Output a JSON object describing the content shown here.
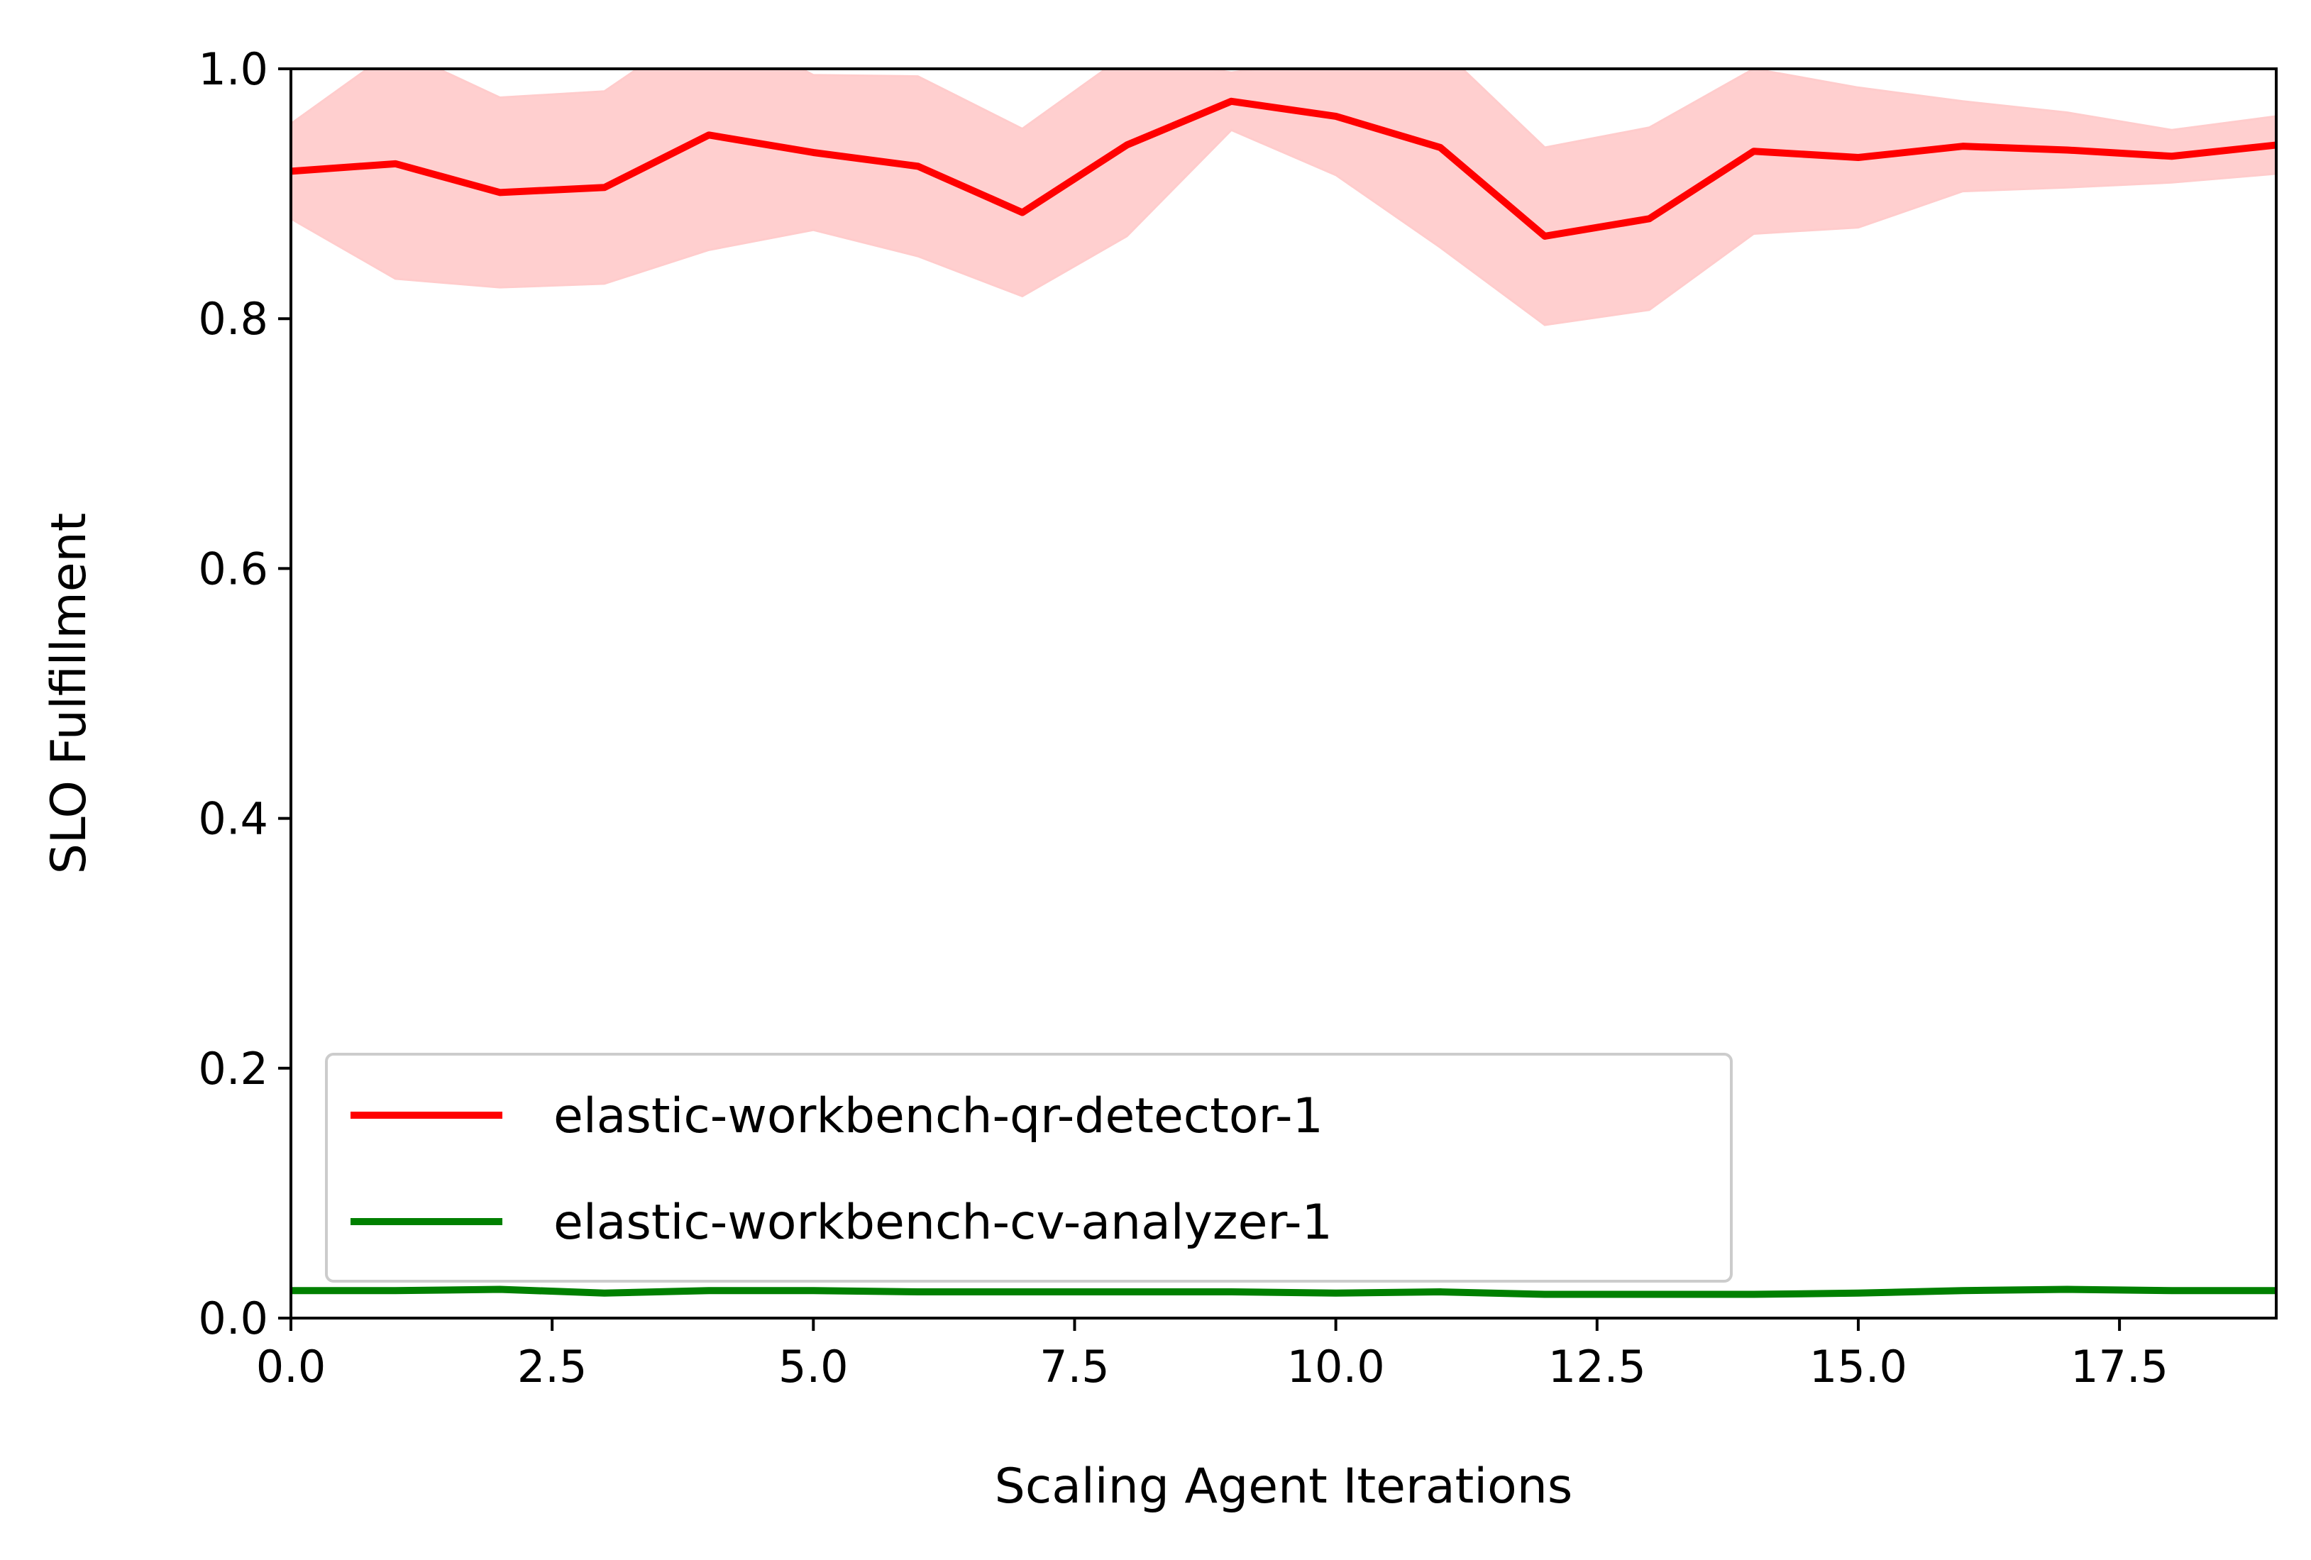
{
  "chart_data": {
    "type": "line",
    "title": "",
    "xlabel": "Scaling Agent Iterations",
    "ylabel": "SLO Fulfillment",
    "xlim": [
      0,
      19
    ],
    "ylim": [
      0,
      1.0
    ],
    "grid": false,
    "legend_position": "bottom-left",
    "x_ticks": [
      "0.0",
      "2.5",
      "5.0",
      "7.5",
      "10.0",
      "12.5",
      "15.0",
      "17.5"
    ],
    "y_ticks": [
      "0.0",
      "0.2",
      "0.4",
      "0.6",
      "0.8",
      "1.0"
    ],
    "x": [
      0,
      1,
      2,
      3,
      4,
      5,
      6,
      7,
      8,
      9,
      10,
      11,
      12,
      13,
      14,
      15,
      16,
      17,
      18,
      19
    ],
    "series": [
      {
        "name": "elastic-workbench-qr-detector-1",
        "color": "#ff0000",
        "band_color": "#ffcccc",
        "values": [
          0.918,
          0.924,
          0.901,
          0.905,
          0.947,
          0.933,
          0.922,
          0.885,
          0.939,
          0.974,
          0.962,
          0.937,
          0.866,
          0.88,
          0.934,
          0.929,
          0.938,
          0.935,
          0.93,
          0.939
        ],
        "upper": [
          0.956,
          1.016,
          0.977,
          0.982,
          1.039,
          0.995,
          0.994,
          0.952,
          1.012,
          0.997,
          1.009,
          1.017,
          0.937,
          0.953,
          1.0,
          0.985,
          0.974,
          0.965,
          0.951,
          0.962
        ],
        "lower": [
          0.88,
          0.832,
          0.825,
          0.828,
          0.855,
          0.871,
          0.85,
          0.818,
          0.866,
          0.951,
          0.915,
          0.857,
          0.795,
          0.807,
          0.868,
          0.873,
          0.902,
          0.905,
          0.909,
          0.916
        ]
      },
      {
        "name": "elastic-workbench-cv-analyzer-1",
        "color": "#008000",
        "values": [
          0.022,
          0.022,
          0.023,
          0.02,
          0.022,
          0.022,
          0.021,
          0.021,
          0.021,
          0.021,
          0.02,
          0.021,
          0.019,
          0.019,
          0.019,
          0.02,
          0.022,
          0.023,
          0.022,
          0.022
        ]
      }
    ]
  }
}
